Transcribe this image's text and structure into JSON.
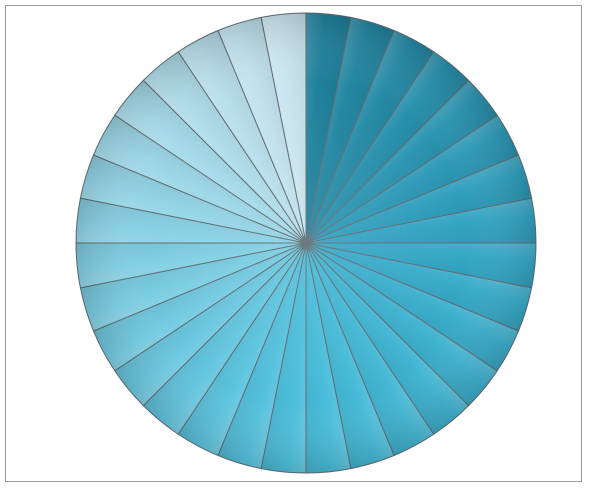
{
  "chart_data": {
    "type": "pie",
    "title": "",
    "slice_count": 32,
    "values": [
      1,
      1,
      1,
      1,
      1,
      1,
      1,
      1,
      1,
      1,
      1,
      1,
      1,
      1,
      1,
      1,
      1,
      1,
      1,
      1,
      1,
      1,
      1,
      1,
      1,
      1,
      1,
      1,
      1,
      1,
      1,
      1
    ],
    "start_angle_deg": 0,
    "direction": "clockwise",
    "legend": "none",
    "colors": {
      "dark_teal": "#1e7e99",
      "mid_teal": "#33a6c6",
      "bright_cyan": "#49bedb",
      "pale_blue": "#cfe6ef",
      "divider": "#5e6d74",
      "frame_border": "#9a9a9a"
    }
  }
}
